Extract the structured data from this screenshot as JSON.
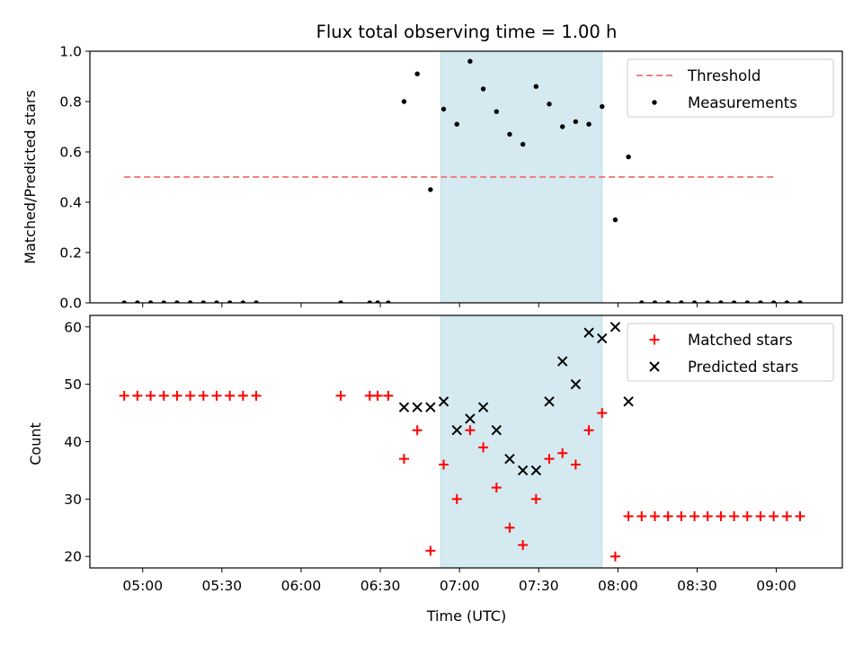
{
  "chart_data": [
    {
      "type": "scatter",
      "title": "Flux total observing time = 1.00 h",
      "xlabel": "",
      "ylabel": "Matched/Predicted stars",
      "ylim": [
        0.0,
        1.0
      ],
      "yticks": [
        "0.0",
        "0.2",
        "0.4",
        "0.6",
        "0.8",
        "1.0"
      ],
      "ytick_values": [
        0.0,
        0.2,
        0.4,
        0.6,
        0.8,
        1.0
      ],
      "x_is_time": true,
      "xlim": [
        "04:40",
        "09:25"
      ],
      "shaded_interval": [
        "06:53",
        "07:54"
      ],
      "shade_color": "#d4eaf0",
      "legend_position": "upper right",
      "series": [
        {
          "name": "Threshold",
          "kind": "dashed-line",
          "color": "#f08080",
          "x": [
            "04:53",
            "09:00"
          ],
          "y": [
            0.5,
            0.5
          ]
        },
        {
          "name": "Measurements",
          "kind": "dot",
          "color": "#000000",
          "x": [
            "04:53",
            "04:58",
            "05:03",
            "05:08",
            "05:13",
            "05:18",
            "05:23",
            "05:28",
            "05:33",
            "05:38",
            "05:43",
            "06:15",
            "06:26",
            "06:29",
            "06:33",
            "06:39",
            "06:44",
            "06:49",
            "06:54",
            "06:59",
            "07:04",
            "07:09",
            "07:14",
            "07:19",
            "07:24",
            "07:29",
            "07:34",
            "07:39",
            "07:44",
            "07:49",
            "07:54",
            "07:59",
            "08:04",
            "08:09",
            "08:14",
            "08:19",
            "08:24",
            "08:29",
            "08:34",
            "08:39",
            "08:44",
            "08:49",
            "08:54",
            "08:59",
            "09:04",
            "09:09"
          ],
          "y": [
            0,
            0,
            0,
            0,
            0,
            0,
            0,
            0,
            0,
            0,
            0,
            0,
            0,
            0,
            0,
            0.8,
            0.91,
            0.45,
            0.77,
            0.71,
            0.96,
            0.85,
            0.76,
            0.67,
            0.63,
            0.86,
            0.79,
            0.7,
            0.72,
            0.71,
            0.78,
            0.33,
            0.58,
            0,
            0,
            0,
            0,
            0,
            0,
            0,
            0,
            0,
            0,
            0,
            0,
            0
          ]
        }
      ]
    },
    {
      "type": "scatter",
      "title": "",
      "xlabel": "Time (UTC)",
      "ylabel": "Count",
      "ylim": [
        18,
        62
      ],
      "yticks": [
        "20",
        "30",
        "40",
        "50",
        "60"
      ],
      "ytick_values": [
        20,
        30,
        40,
        50,
        60
      ],
      "xticks": [
        "05:00",
        "05:30",
        "06:00",
        "06:30",
        "07:00",
        "07:30",
        "08:00",
        "08:30",
        "09:00"
      ],
      "xtick_values": [
        "05:00",
        "05:30",
        "06:00",
        "06:30",
        "07:00",
        "07:30",
        "08:00",
        "08:30",
        "09:00"
      ],
      "x_is_time": true,
      "xlim": [
        "04:40",
        "09:25"
      ],
      "shaded_interval": [
        "06:53",
        "07:54"
      ],
      "shade_color": "#d4eaf0",
      "legend_position": "upper right",
      "series": [
        {
          "name": "Matched stars",
          "kind": "plus",
          "color": "#ff0000",
          "x": [
            "04:53",
            "04:58",
            "05:03",
            "05:08",
            "05:13",
            "05:18",
            "05:23",
            "05:28",
            "05:33",
            "05:38",
            "05:43",
            "06:15",
            "06:26",
            "06:29",
            "06:33",
            "06:39",
            "06:44",
            "06:49",
            "06:54",
            "06:59",
            "07:04",
            "07:09",
            "07:14",
            "07:19",
            "07:24",
            "07:29",
            "07:34",
            "07:39",
            "07:44",
            "07:49",
            "07:54",
            "07:59",
            "08:04",
            "08:09",
            "08:14",
            "08:19",
            "08:24",
            "08:29",
            "08:34",
            "08:39",
            "08:44",
            "08:49",
            "08:54",
            "08:59",
            "09:04",
            "09:09"
          ],
          "y": [
            48,
            48,
            48,
            48,
            48,
            48,
            48,
            48,
            48,
            48,
            48,
            48,
            48,
            48,
            48,
            37,
            42,
            21,
            36,
            30,
            42,
            39,
            32,
            25,
            22,
            30,
            37,
            38,
            36,
            42,
            45,
            20,
            27,
            27,
            27,
            27,
            27,
            27,
            27,
            27,
            27,
            27,
            27,
            27,
            27,
            27
          ]
        },
        {
          "name": "Predicted stars",
          "kind": "x",
          "color": "#000000",
          "x": [
            "06:39",
            "06:44",
            "06:49",
            "06:54",
            "06:59",
            "07:04",
            "07:09",
            "07:14",
            "07:19",
            "07:24",
            "07:29",
            "07:34",
            "07:39",
            "07:44",
            "07:49",
            "07:54",
            "07:59",
            "08:04"
          ],
          "y": [
            46,
            46,
            46,
            47,
            42,
            44,
            46,
            42,
            37,
            35,
            35,
            47,
            54,
            50,
            59,
            58,
            60,
            47
          ]
        }
      ]
    }
  ]
}
